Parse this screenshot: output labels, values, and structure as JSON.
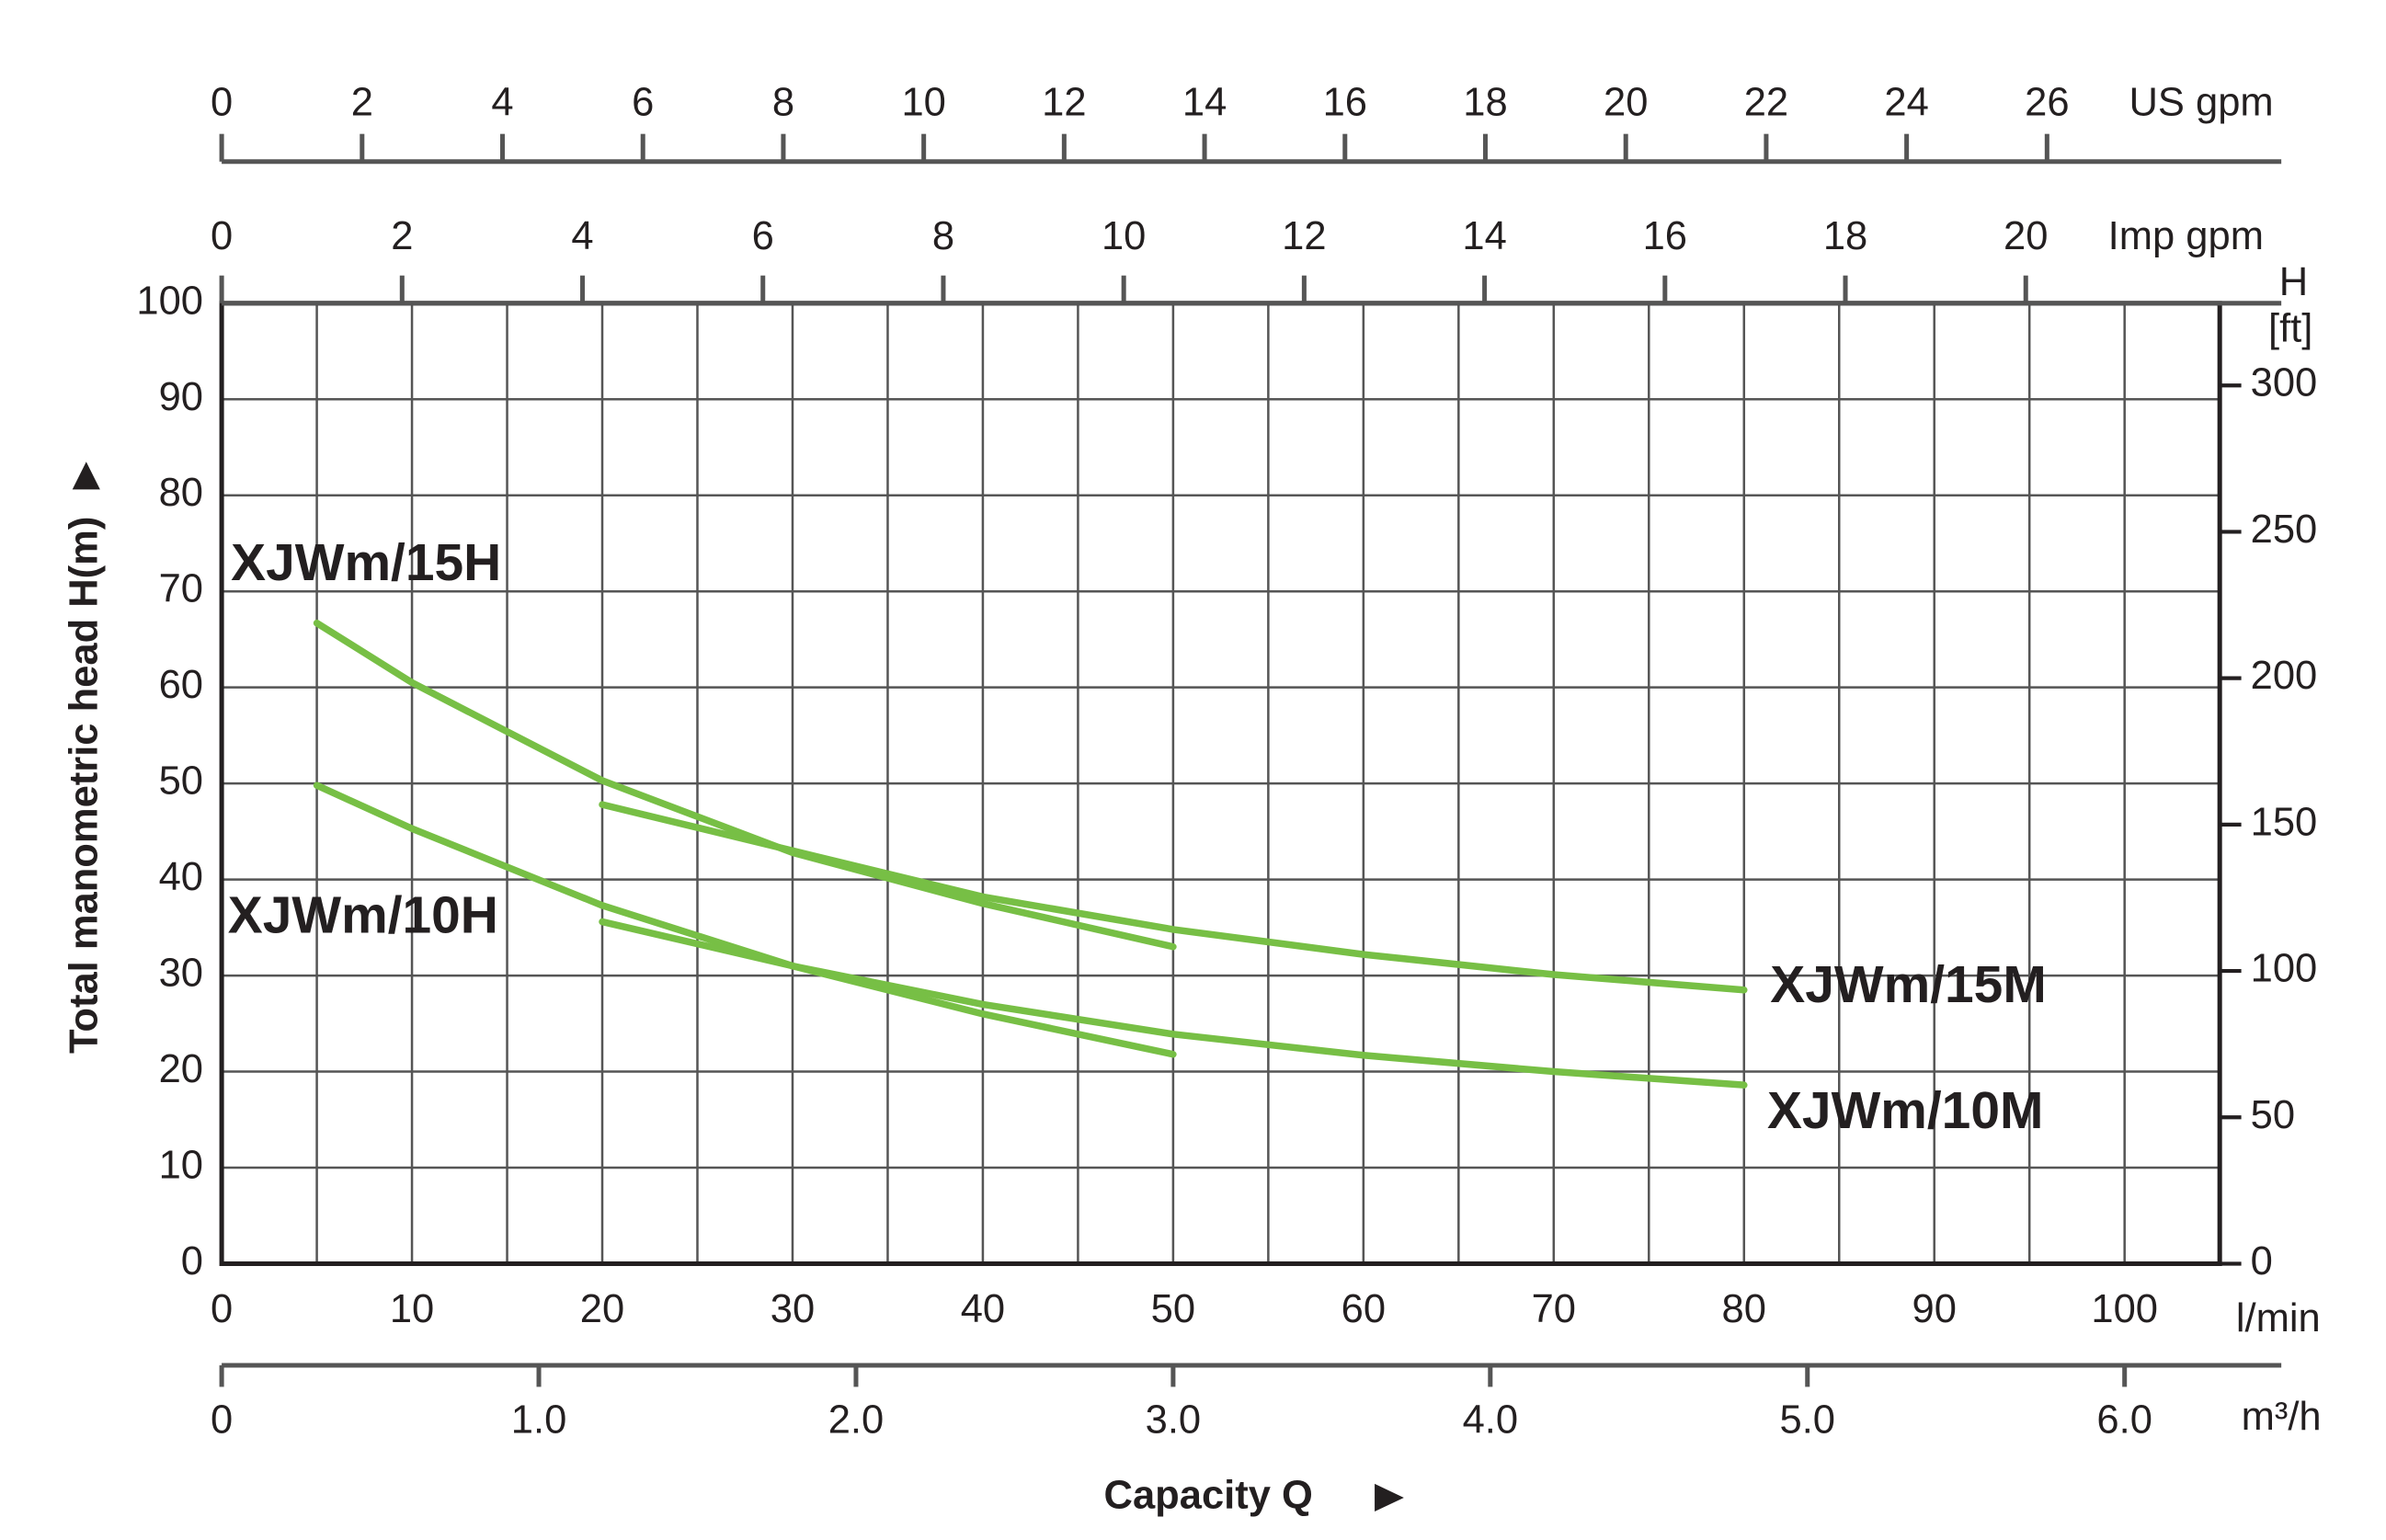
{
  "chart_data": {
    "type": "line",
    "y_label": "Total manometric head H(m)",
    "x_label": "Capacity Q",
    "x_unit": "l/min",
    "xlim": [
      0,
      105
    ],
    "xticks": [
      0,
      10,
      20,
      30,
      40,
      50,
      60,
      70,
      80,
      90,
      100
    ],
    "xminor": [
      5,
      15,
      25,
      35,
      45,
      55,
      65,
      75,
      85,
      95
    ],
    "ylim": [
      0,
      100
    ],
    "yticks": [
      0,
      10,
      20,
      30,
      40,
      50,
      60,
      70,
      80,
      90,
      100
    ],
    "y2_label": [
      "H",
      "[ft]"
    ],
    "y2lim": [
      0,
      328.08
    ],
    "y2ticks": [
      0,
      50,
      100,
      150,
      200,
      250,
      300
    ],
    "grid": true,
    "top_axes": [
      {
        "label": "US gpm",
        "lim": [
          0,
          28.46
        ],
        "ticks": [
          0,
          2,
          4,
          6,
          8,
          10,
          12,
          14,
          16,
          18,
          20,
          22,
          24,
          26
        ]
      },
      {
        "label": "Imp gpm",
        "lim": [
          0,
          22.15
        ],
        "ticks": [
          0,
          2,
          4,
          6,
          8,
          10,
          12,
          14,
          16,
          18,
          20
        ]
      }
    ],
    "bottom_axis": {
      "label": "m³/h",
      "lim": [
        0,
        6.3
      ],
      "ticks": [
        0,
        {
          "value": 1,
          "label": "1.0"
        },
        {
          "value": 2,
          "label": "2.0"
        },
        {
          "value": 3,
          "label": "3.0"
        },
        {
          "value": 4,
          "label": "4.0"
        },
        {
          "value": 5,
          "label": "5.0"
        },
        {
          "value": 6,
          "label": "6.0"
        }
      ]
    },
    "series": [
      {
        "name": "XJWm/15H",
        "color": "#77bf45",
        "x": [
          5,
          10,
          20,
          30,
          40,
          50
        ],
        "values": [
          66.7,
          60.5,
          50.3,
          42.8,
          37.5,
          33
        ]
      },
      {
        "name": "XJWm/15M",
        "color": "#77bf45",
        "x": [
          20,
          30,
          40,
          50,
          60,
          70,
          80
        ],
        "values": [
          47.8,
          43,
          38.2,
          34.8,
          32.2,
          30.1,
          28.5
        ]
      },
      {
        "name": "XJWm/10H",
        "color": "#77bf45",
        "x": [
          5,
          10,
          20,
          30,
          40,
          50
        ],
        "values": [
          49.8,
          45.3,
          37.3,
          31,
          26,
          21.8
        ]
      },
      {
        "name": "XJWm/10M",
        "color": "#77bf45",
        "x": [
          20,
          30,
          40,
          50,
          60,
          70,
          80
        ],
        "values": [
          35.6,
          31,
          27,
          23.9,
          21.7,
          20,
          18.6
        ]
      }
    ]
  }
}
